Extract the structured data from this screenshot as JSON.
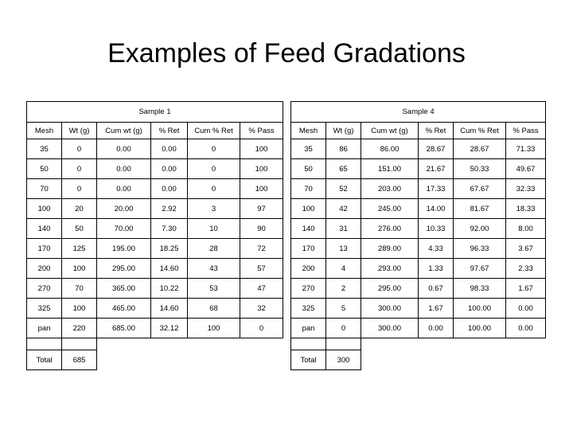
{
  "title": "Examples of Feed Gradations",
  "sample1": {
    "label": "Sample 1",
    "headers": [
      "Mesh",
      "Wt (g)",
      "Cum wt (g)",
      "% Ret",
      "Cum % Ret",
      "% Pass"
    ],
    "rows": [
      [
        "35",
        "0",
        "0.00",
        "0.00",
        "0",
        "100"
      ],
      [
        "50",
        "0",
        "0.00",
        "0.00",
        "0",
        "100"
      ],
      [
        "70",
        "0",
        "0.00",
        "0.00",
        "0",
        "100"
      ],
      [
        "100",
        "20",
        "20.00",
        "2.92",
        "3",
        "97"
      ],
      [
        "140",
        "50",
        "70.00",
        "7.30",
        "10",
        "90"
      ],
      [
        "170",
        "125",
        "195.00",
        "18.25",
        "28",
        "72"
      ],
      [
        "200",
        "100",
        "295.00",
        "14.60",
        "43",
        "57"
      ],
      [
        "270",
        "70",
        "365.00",
        "10.22",
        "53",
        "47"
      ],
      [
        "325",
        "100",
        "465.00",
        "14.60",
        "68",
        "32"
      ],
      [
        "pan",
        "220",
        "685.00",
        "32.12",
        "100",
        "0"
      ]
    ],
    "total_label": "Total",
    "total_value": "685"
  },
  "sample4": {
    "label": "Sample 4",
    "headers": [
      "Mesh",
      "Wt (g)",
      "Cum wt (g)",
      "% Ret",
      "Cum % Ret",
      "% Pass"
    ],
    "rows": [
      [
        "35",
        "86",
        "86.00",
        "28.67",
        "28.67",
        "71.33"
      ],
      [
        "50",
        "65",
        "151.00",
        "21.67",
        "50.33",
        "49.67"
      ],
      [
        "70",
        "52",
        "203.00",
        "17.33",
        "67.67",
        "32.33"
      ],
      [
        "100",
        "42",
        "245.00",
        "14.00",
        "81.67",
        "18.33"
      ],
      [
        "140",
        "31",
        "276.00",
        "10.33",
        "92.00",
        "8.00"
      ],
      [
        "170",
        "13",
        "289.00",
        "4.33",
        "96.33",
        "3.67"
      ],
      [
        "200",
        "4",
        "293.00",
        "1.33",
        "97.67",
        "2.33"
      ],
      [
        "270",
        "2",
        "295.00",
        "0.67",
        "98.33",
        "1.67"
      ],
      [
        "325",
        "5",
        "300.00",
        "1.67",
        "100.00",
        "0.00"
      ],
      [
        "pan",
        "0",
        "300.00",
        "0.00",
        "100.00",
        "0.00"
      ]
    ],
    "total_label": "Total",
    "total_value": "300"
  }
}
